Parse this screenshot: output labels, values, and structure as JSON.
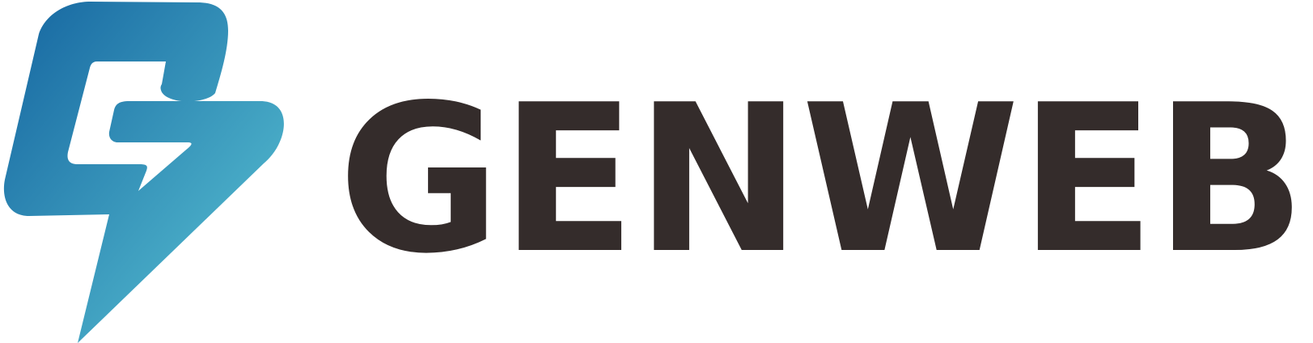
{
  "brand": {
    "name": "GENWEB",
    "colors": {
      "mark_dark": "#1565a0",
      "mark_light": "#4aaec8",
      "text": "#342c2b"
    }
  }
}
